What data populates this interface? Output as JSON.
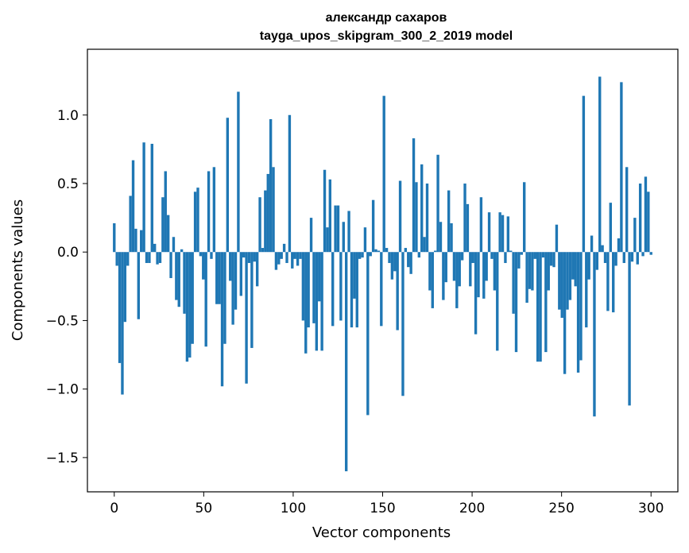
{
  "chart_data": {
    "type": "bar",
    "title_line1": "александр сахаров",
    "title_line2": "tayga_upos_skipgram_300_2_2019 model",
    "xlabel": "Vector components",
    "ylabel": "Components values",
    "xlim": [
      -15,
      315
    ],
    "ylim": [
      -1.75,
      1.48
    ],
    "xticks": [
      0,
      50,
      100,
      150,
      200,
      250,
      300
    ],
    "xtick_labels": [
      "0",
      "50",
      "100",
      "150",
      "200",
      "250",
      "300"
    ],
    "yticks": [
      -1.5,
      -1.0,
      -0.5,
      0.0,
      0.5,
      1.0
    ],
    "ytick_labels": [
      "−1.5",
      "−1.0",
      "−0.5",
      "0.0",
      "0.5",
      "1.0"
    ],
    "bar_color": "#1f77b4",
    "values": [
      0.21,
      -0.1,
      -0.81,
      -1.04,
      -0.51,
      -0.1,
      0.41,
      0.67,
      0.17,
      -0.49,
      0.16,
      0.8,
      -0.08,
      -0.08,
      0.79,
      0.06,
      -0.09,
      -0.08,
      0.4,
      0.59,
      0.27,
      -0.19,
      0.11,
      -0.35,
      -0.4,
      0.02,
      -0.45,
      -0.8,
      -0.77,
      -0.67,
      0.44,
      0.47,
      -0.03,
      -0.2,
      -0.69,
      0.59,
      -0.05,
      0.62,
      -0.38,
      -0.38,
      -0.98,
      -0.67,
      0.98,
      -0.21,
      -0.53,
      -0.42,
      1.17,
      -0.32,
      -0.04,
      -0.96,
      -0.08,
      -0.7,
      -0.07,
      -0.25,
      0.4,
      0.03,
      0.45,
      0.57,
      0.97,
      0.62,
      -0.13,
      -0.09,
      -0.05,
      0.06,
      -0.08,
      1.0,
      -0.12,
      -0.05,
      -0.1,
      -0.05,
      -0.5,
      -0.74,
      -0.55,
      0.25,
      -0.52,
      -0.72,
      -0.36,
      -0.72,
      0.6,
      0.18,
      0.53,
      -0.54,
      0.34,
      0.34,
      -0.5,
      0.22,
      -1.6,
      0.3,
      -0.55,
      -0.34,
      -0.55,
      -0.05,
      -0.04,
      0.18,
      -1.19,
      -0.03,
      0.38,
      0.02,
      0.01,
      -0.54,
      1.14,
      0.03,
      -0.08,
      -0.2,
      -0.14,
      -0.57,
      0.52,
      -1.05,
      0.03,
      -0.11,
      -0.16,
      0.83,
      0.51,
      -0.04,
      0.64,
      0.11,
      0.5,
      -0.28,
      -0.41,
      0.01,
      0.71,
      0.22,
      -0.35,
      -0.22,
      0.45,
      0.21,
      -0.21,
      -0.41,
      -0.25,
      -0.06,
      0.5,
      0.35,
      -0.25,
      -0.08,
      -0.6,
      -0.33,
      0.4,
      -0.34,
      -0.21,
      0.29,
      -0.05,
      -0.28,
      -0.72,
      0.29,
      0.27,
      -0.08,
      0.26,
      0.01,
      -0.45,
      -0.73,
      -0.12,
      -0.02,
      0.51,
      -0.37,
      -0.27,
      -0.28,
      -0.05,
      -0.8,
      -0.8,
      -0.04,
      -0.73,
      -0.28,
      -0.1,
      -0.11,
      0.2,
      -0.42,
      -0.48,
      -0.89,
      -0.42,
      -0.35,
      -0.2,
      -0.25,
      -0.88,
      -0.79,
      1.14,
      -0.55,
      -0.2,
      0.12,
      -1.2,
      -0.13,
      1.28,
      0.05,
      -0.08,
      -0.43,
      0.36,
      -0.44,
      -0.1,
      0.1,
      1.24,
      -0.08,
      0.62,
      -1.12,
      -0.07,
      0.25,
      -0.09,
      0.5,
      -0.03,
      0.55,
      0.44,
      -0.02
    ]
  }
}
